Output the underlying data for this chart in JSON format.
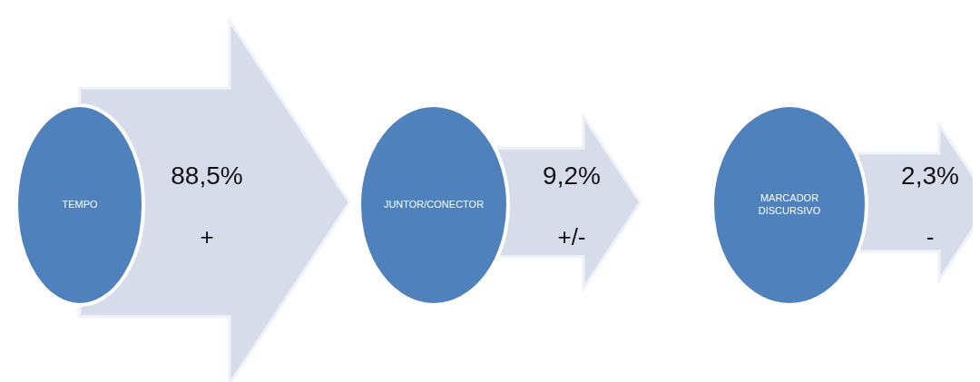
{
  "chart_data": {
    "type": "other",
    "categories": [
      "TEMPO",
      "JUNTOR/CONECTOR",
      "MARCADOR DISCURSIVO"
    ],
    "values": [
      88.5,
      9.2,
      2.3
    ],
    "value_labels": [
      "88,5%",
      "9,2%",
      "2,3%"
    ],
    "color": "#d6dce9",
    "annotations": [
      "+",
      "+/-",
      "-"
    ]
  }
}
